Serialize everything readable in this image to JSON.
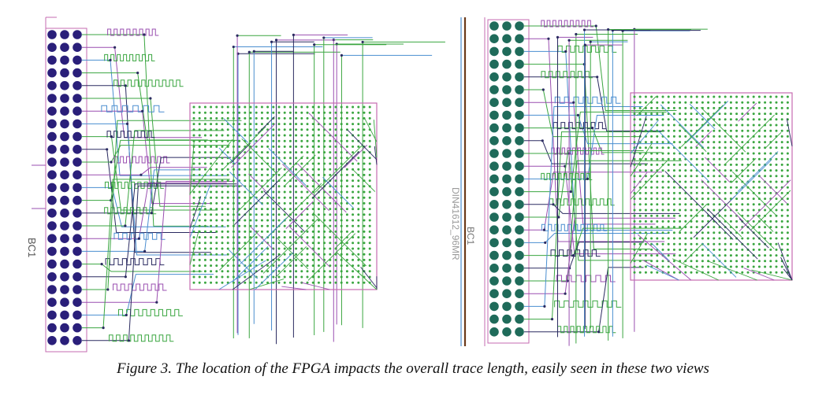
{
  "caption": "Figure 3. The location of the FPGA impacts the overall trace length, easily seen in these two views",
  "left_view": {
    "connector_label": "BC1"
  },
  "right_view": {
    "connector_label": "BC1",
    "part_label": "DIN41612_96MR"
  },
  "colors": {
    "trace_green": "#3aa640",
    "trace_purple": "#9a4fb0",
    "trace_blue": "#4a8ed0",
    "trace_dark": "#2a2a60",
    "pad_navy": "#2a1f7a",
    "pad_teal": "#1f6b5a",
    "outline_pink": "#c66bb0",
    "bga_green": "#3aa640",
    "board_edge_brown": "#6b3a1a"
  }
}
